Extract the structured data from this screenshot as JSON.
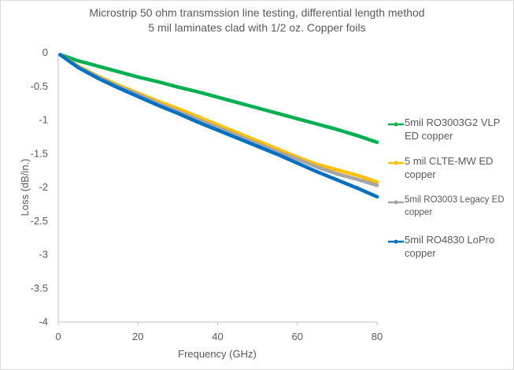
{
  "chart_data": {
    "type": "line",
    "title": "Microstrip 50 ohm transmssion line testing, differential length method",
    "subtitle": "5 mil laminates clad with 1/2 oz. Copper foils",
    "xlabel": "Frequency (GHz)",
    "ylabel": "Loss (dB/in.)",
    "xlim": [
      0,
      80
    ],
    "ylim": [
      -4,
      0
    ],
    "xticks": [
      0,
      20,
      40,
      60,
      80
    ],
    "yticks": [
      0,
      -0.5,
      -1,
      -1.5,
      -2,
      -2.5,
      -3,
      -3.5,
      -4
    ],
    "ytick_labels": [
      "0",
      "-0.5",
      "-1",
      "-1.5",
      "-2",
      "-2.5",
      "-3",
      "-3.5",
      "-4"
    ],
    "grid": false,
    "legend_position": "right",
    "series": [
      {
        "name": "5mil RO3003G2 VLP ED copper",
        "color": "#00b050",
        "x": [
          0.5,
          5,
          10,
          15,
          20,
          25,
          30,
          35,
          40,
          45,
          50,
          55,
          60,
          65,
          70,
          75,
          80
        ],
        "y": [
          -0.03,
          -0.12,
          -0.2,
          -0.28,
          -0.36,
          -0.43,
          -0.51,
          -0.58,
          -0.66,
          -0.74,
          -0.82,
          -0.9,
          -0.98,
          -1.06,
          -1.14,
          -1.23,
          -1.33
        ]
      },
      {
        "name": "5 mil CLTE-MW ED copper",
        "color": "#ffc000",
        "x": [
          0.5,
          5,
          10,
          15,
          20,
          25,
          30,
          35,
          40,
          45,
          50,
          55,
          60,
          65,
          70,
          75,
          80
        ],
        "y": [
          -0.03,
          -0.2,
          -0.35,
          -0.48,
          -0.6,
          -0.72,
          -0.83,
          -0.95,
          -1.07,
          -1.19,
          -1.31,
          -1.43,
          -1.55,
          -1.66,
          -1.74,
          -1.82,
          -1.92
        ]
      },
      {
        "name": "5mil RO3003 Legacy ED copper",
        "color": "#a5a5a5",
        "x": [
          0.5,
          5,
          10,
          15,
          20,
          25,
          30,
          35,
          40,
          45,
          50,
          55,
          60,
          65,
          70,
          75,
          80
        ],
        "y": [
          -0.03,
          -0.21,
          -0.36,
          -0.5,
          -0.62,
          -0.75,
          -0.87,
          -0.99,
          -1.11,
          -1.23,
          -1.35,
          -1.47,
          -1.58,
          -1.7,
          -1.8,
          -1.88,
          -1.97
        ]
      },
      {
        "name": "5mil RO4830 LoPro copper",
        "color": "#0070c0",
        "x": [
          0.5,
          5,
          10,
          15,
          20,
          25,
          30,
          35,
          40,
          45,
          50,
          55,
          60,
          65,
          70,
          75,
          80
        ],
        "y": [
          -0.03,
          -0.22,
          -0.38,
          -0.52,
          -0.65,
          -0.78,
          -0.9,
          -1.03,
          -1.15,
          -1.27,
          -1.39,
          -1.51,
          -1.64,
          -1.77,
          -1.89,
          -2.01,
          -2.14
        ]
      }
    ]
  },
  "legend": {
    "items": [
      {
        "line1": "5mil RO3003G2 VLP",
        "line2": "ED copper",
        "small": false
      },
      {
        "line1": "5 mil CLTE-MW ED",
        "line2": "copper",
        "small": false
      },
      {
        "line1": "5mil RO3003 Legacy ED",
        "line2": "copper",
        "small": true
      },
      {
        "line1": "5mil RO4830 LoPro",
        "line2": "copper",
        "small": false
      }
    ]
  }
}
